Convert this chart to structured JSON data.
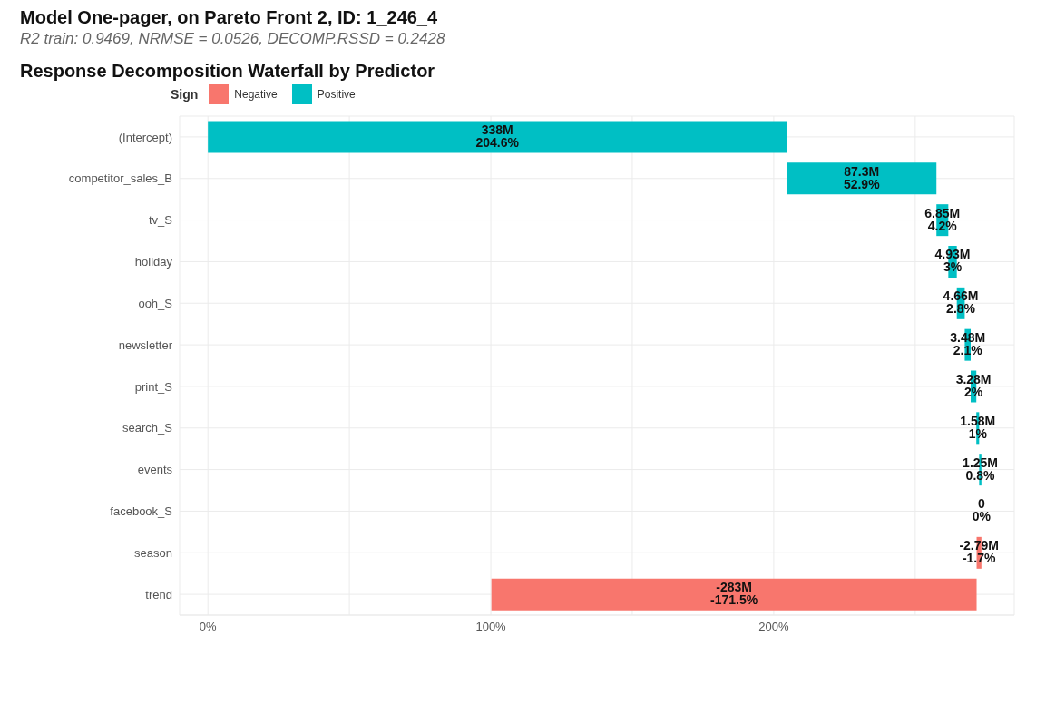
{
  "chart_data": {
    "type": "bar",
    "orientation": "horizontal",
    "title": "Model One-pager, on Pareto Front 2, ID: 1_246_4",
    "subtitle": "R2 train: 0.9469, NRMSE = 0.0526, DECOMP.RSSD = 0.2428",
    "annotations": [
      "Response Decomposition Waterfall by Predictor"
    ],
    "legend_title": "Sign",
    "legend": "top left",
    "grid": true,
    "categories": [
      "(Intercept)",
      "competitor_sales_B",
      "tv_S",
      "holiday",
      "ooh_S",
      "newsletter",
      "print_S",
      "search_S",
      "events",
      "facebook_S",
      "season",
      "trend"
    ],
    "series": [
      {
        "name": "Negative",
        "color": "#f8766d",
        "values": [
          null,
          null,
          null,
          null,
          null,
          null,
          null,
          null,
          null,
          null,
          -1.7,
          -171.5
        ],
        "base": [
          null,
          null,
          null,
          null,
          null,
          null,
          null,
          null,
          null,
          null,
          273.4,
          271.7
        ]
      },
      {
        "name": "Positive",
        "color": "#00bfc4",
        "values": [
          204.6,
          52.9,
          4.2,
          3,
          2.8,
          2.1,
          2,
          1,
          0.8,
          0,
          null,
          null
        ],
        "base": [
          0,
          204.6,
          257.5,
          261.7,
          264.7,
          267.5,
          269.6,
          271.6,
          272.6,
          null,
          null,
          null
        ]
      }
    ],
    "value_labels": [
      "338M\n204.6%",
      "87.3M\n52.9%",
      "6.85M\n4.2%",
      "4.93M\n3%",
      "4.66M\n2.8%",
      "3.48M\n2.1%",
      "3.28M\n2%",
      "1.58M\n1%",
      "1.25M\n0.8%",
      "0\n0%",
      "-2.79M\n-1.7%",
      "-283M\n-171.5%"
    ],
    "xlim": [
      -10,
      285
    ],
    "xticks": [
      {
        "value": 0,
        "label": "0%"
      },
      {
        "value": 50,
        "label": null
      },
      {
        "value": 100,
        "label": "100%"
      },
      {
        "value": 150,
        "label": null
      },
      {
        "value": 200,
        "label": "200%"
      },
      {
        "value": 250,
        "label": null
      }
    ]
  }
}
